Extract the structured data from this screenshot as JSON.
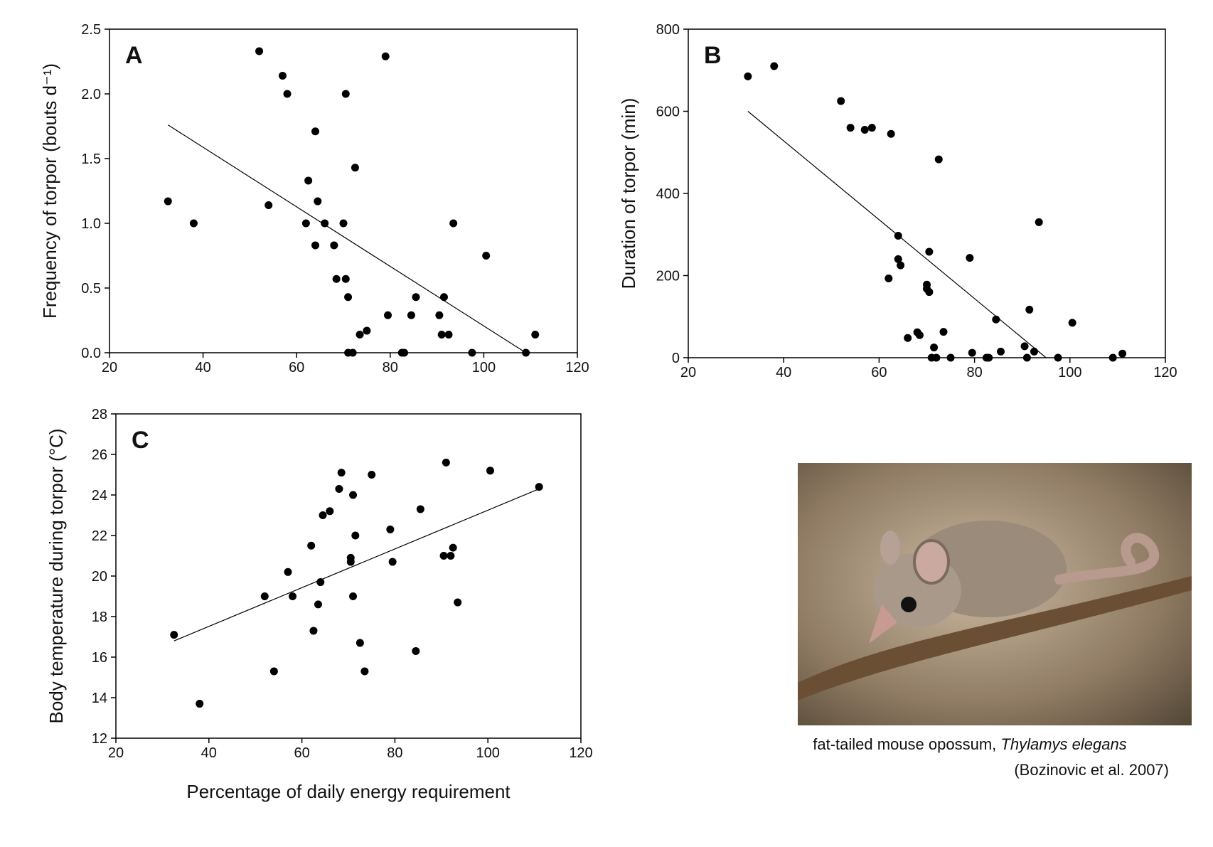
{
  "chart_data": [
    {
      "type": "scatter",
      "label": "A",
      "ylabel": "Frequency of torpor (bouts d⁻¹)",
      "xlim": [
        20,
        120
      ],
      "xticks": [
        20,
        40,
        60,
        80,
        100,
        120
      ],
      "ylim": [
        0,
        2.5
      ],
      "yticks": [
        {
          "value": 0,
          "label": "0.0"
        },
        0.5,
        {
          "value": 1,
          "label": "1.0"
        },
        1.5,
        {
          "value": 2,
          "label": "2.0"
        },
        2.5
      ],
      "color": "#000000",
      "x": [
        32.5,
        38,
        52,
        54,
        57,
        58,
        62,
        62.5,
        64,
        64,
        64.5,
        66,
        68,
        68.5,
        70,
        70.5,
        70.5,
        71,
        71,
        72,
        72.5,
        73.5,
        75,
        79,
        79.5,
        82.5,
        83,
        84.5,
        85.5,
        90.5,
        91,
        91.5,
        92.5,
        93.5,
        97.5,
        100.5,
        109,
        111
      ],
      "values": [
        1.17,
        1.0,
        2.33,
        1.14,
        2.14,
        2.0,
        1.0,
        1.33,
        1.71,
        0.83,
        1.17,
        1.0,
        0.83,
        0.57,
        1.0,
        2.0,
        0.57,
        0.43,
        0,
        0,
        1.43,
        0.14,
        0.17,
        2.29,
        0.29,
        0,
        0,
        0.29,
        0.43,
        0.29,
        0.14,
        0.43,
        0.14,
        1.0,
        0,
        0.75,
        0,
        0.14
      ],
      "trendline": {
        "x": [
          32.5,
          109
        ],
        "values": [
          1.76,
          0
        ]
      }
    },
    {
      "type": "scatter",
      "label": "B",
      "ylabel": "Duration of torpor (min)",
      "xlim": [
        20,
        120
      ],
      "xticks": [
        20,
        40,
        60,
        80,
        100,
        120
      ],
      "ylim": [
        0,
        800
      ],
      "yticks": [
        0,
        200,
        400,
        600,
        800
      ],
      "color": "#000000",
      "x": [
        32.5,
        38,
        52,
        54,
        57,
        58.5,
        62.5,
        62,
        64,
        64,
        64.5,
        66,
        68,
        68.5,
        70,
        70,
        70.5,
        70.5,
        71,
        71.5,
        72,
        72.5,
        73.5,
        75,
        79,
        79.5,
        82.5,
        83,
        84.5,
        85.5,
        90.5,
        91,
        91.5,
        92.5,
        93.5,
        97.5,
        100.5,
        109,
        111
      ],
      "values": [
        685,
        710,
        625,
        560,
        555,
        560,
        545,
        193,
        297,
        240,
        225,
        48,
        62,
        55,
        178,
        168,
        258,
        160,
        0,
        25,
        0,
        483,
        63,
        0,
        243,
        12,
        0,
        0,
        93,
        15,
        28,
        0,
        117,
        15,
        330,
        0,
        85,
        0,
        10
      ],
      "trendline": {
        "x": [
          32.5,
          95
        ],
        "values": [
          600,
          0
        ]
      }
    },
    {
      "type": "scatter",
      "label": "C",
      "ylabel": "Body temperature during torpor (°C)",
      "xlabel": "Percentage of daily energy requirement",
      "xlim": [
        20,
        120
      ],
      "xticks": [
        20,
        40,
        60,
        80,
        100,
        120
      ],
      "ylim": [
        12,
        28
      ],
      "yticks": [
        12,
        14,
        16,
        18,
        20,
        22,
        24,
        26,
        28
      ],
      "color": "#000000",
      "x": [
        32.5,
        38,
        52,
        54,
        57,
        58,
        62,
        62.5,
        63.5,
        64,
        64.5,
        66,
        68,
        68.5,
        70.5,
        70.5,
        71,
        71,
        71.5,
        72.5,
        73.5,
        75,
        79,
        79.5,
        84.5,
        85.5,
        90.5,
        91,
        92,
        92.5,
        93.5,
        100.5,
        111
      ],
      "values": [
        17.1,
        13.7,
        19.0,
        15.3,
        20.2,
        19.0,
        21.5,
        17.3,
        18.6,
        19.7,
        23.0,
        23.2,
        24.3,
        25.1,
        20.9,
        20.7,
        24.0,
        19.0,
        22.0,
        16.7,
        15.3,
        25.0,
        22.3,
        20.7,
        16.3,
        23.3,
        21.0,
        25.6,
        21.0,
        21.4,
        18.7,
        25.2,
        24.4
      ],
      "trendline": {
        "x": [
          32.5,
          111
        ],
        "values": [
          16.8,
          24.3
        ]
      }
    }
  ],
  "caption": {
    "common_name": "fat-tailed mouse opossum,",
    "species": "Thylamys elegans",
    "source": "(Bozinovic et al. 2007)"
  }
}
